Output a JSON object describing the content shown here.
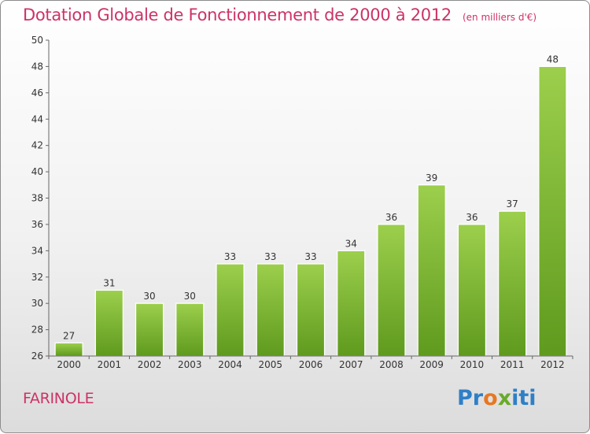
{
  "title": "Dotation Globale de Fonctionnement de 2000 à 2012",
  "subtitle": "(en milliers d'€)",
  "commune": "FARINOLE",
  "logo": {
    "letters": [
      "P",
      "r",
      "o",
      "x",
      "i",
      "t",
      "i"
    ],
    "colors": [
      "#2e7fc7",
      "#2e7fc7",
      "#e87722",
      "#6aaa2a",
      "#2e7fc7",
      "#2e7fc7",
      "#2e7fc7"
    ]
  },
  "colors": {
    "bar_top": "#9ccf4c",
    "bar_bottom": "#5f9a1e",
    "title": "#cc3366"
  },
  "chart_data": {
    "type": "bar",
    "title": "Dotation Globale de Fonctionnement de 2000 à 2012",
    "subtitle": "(en milliers d'€)",
    "categories": [
      "2000",
      "2001",
      "2002",
      "2003",
      "2004",
      "2005",
      "2006",
      "2007",
      "2008",
      "2009",
      "2010",
      "2011",
      "2012"
    ],
    "values": [
      27,
      31,
      30,
      30,
      33,
      33,
      33,
      34,
      36,
      39,
      36,
      37,
      48
    ],
    "ylim": [
      26,
      50
    ],
    "yticks": [
      26,
      28,
      30,
      32,
      34,
      36,
      38,
      40,
      42,
      44,
      46,
      48,
      50
    ],
    "grid": false,
    "xlabel": "",
    "ylabel": ""
  }
}
